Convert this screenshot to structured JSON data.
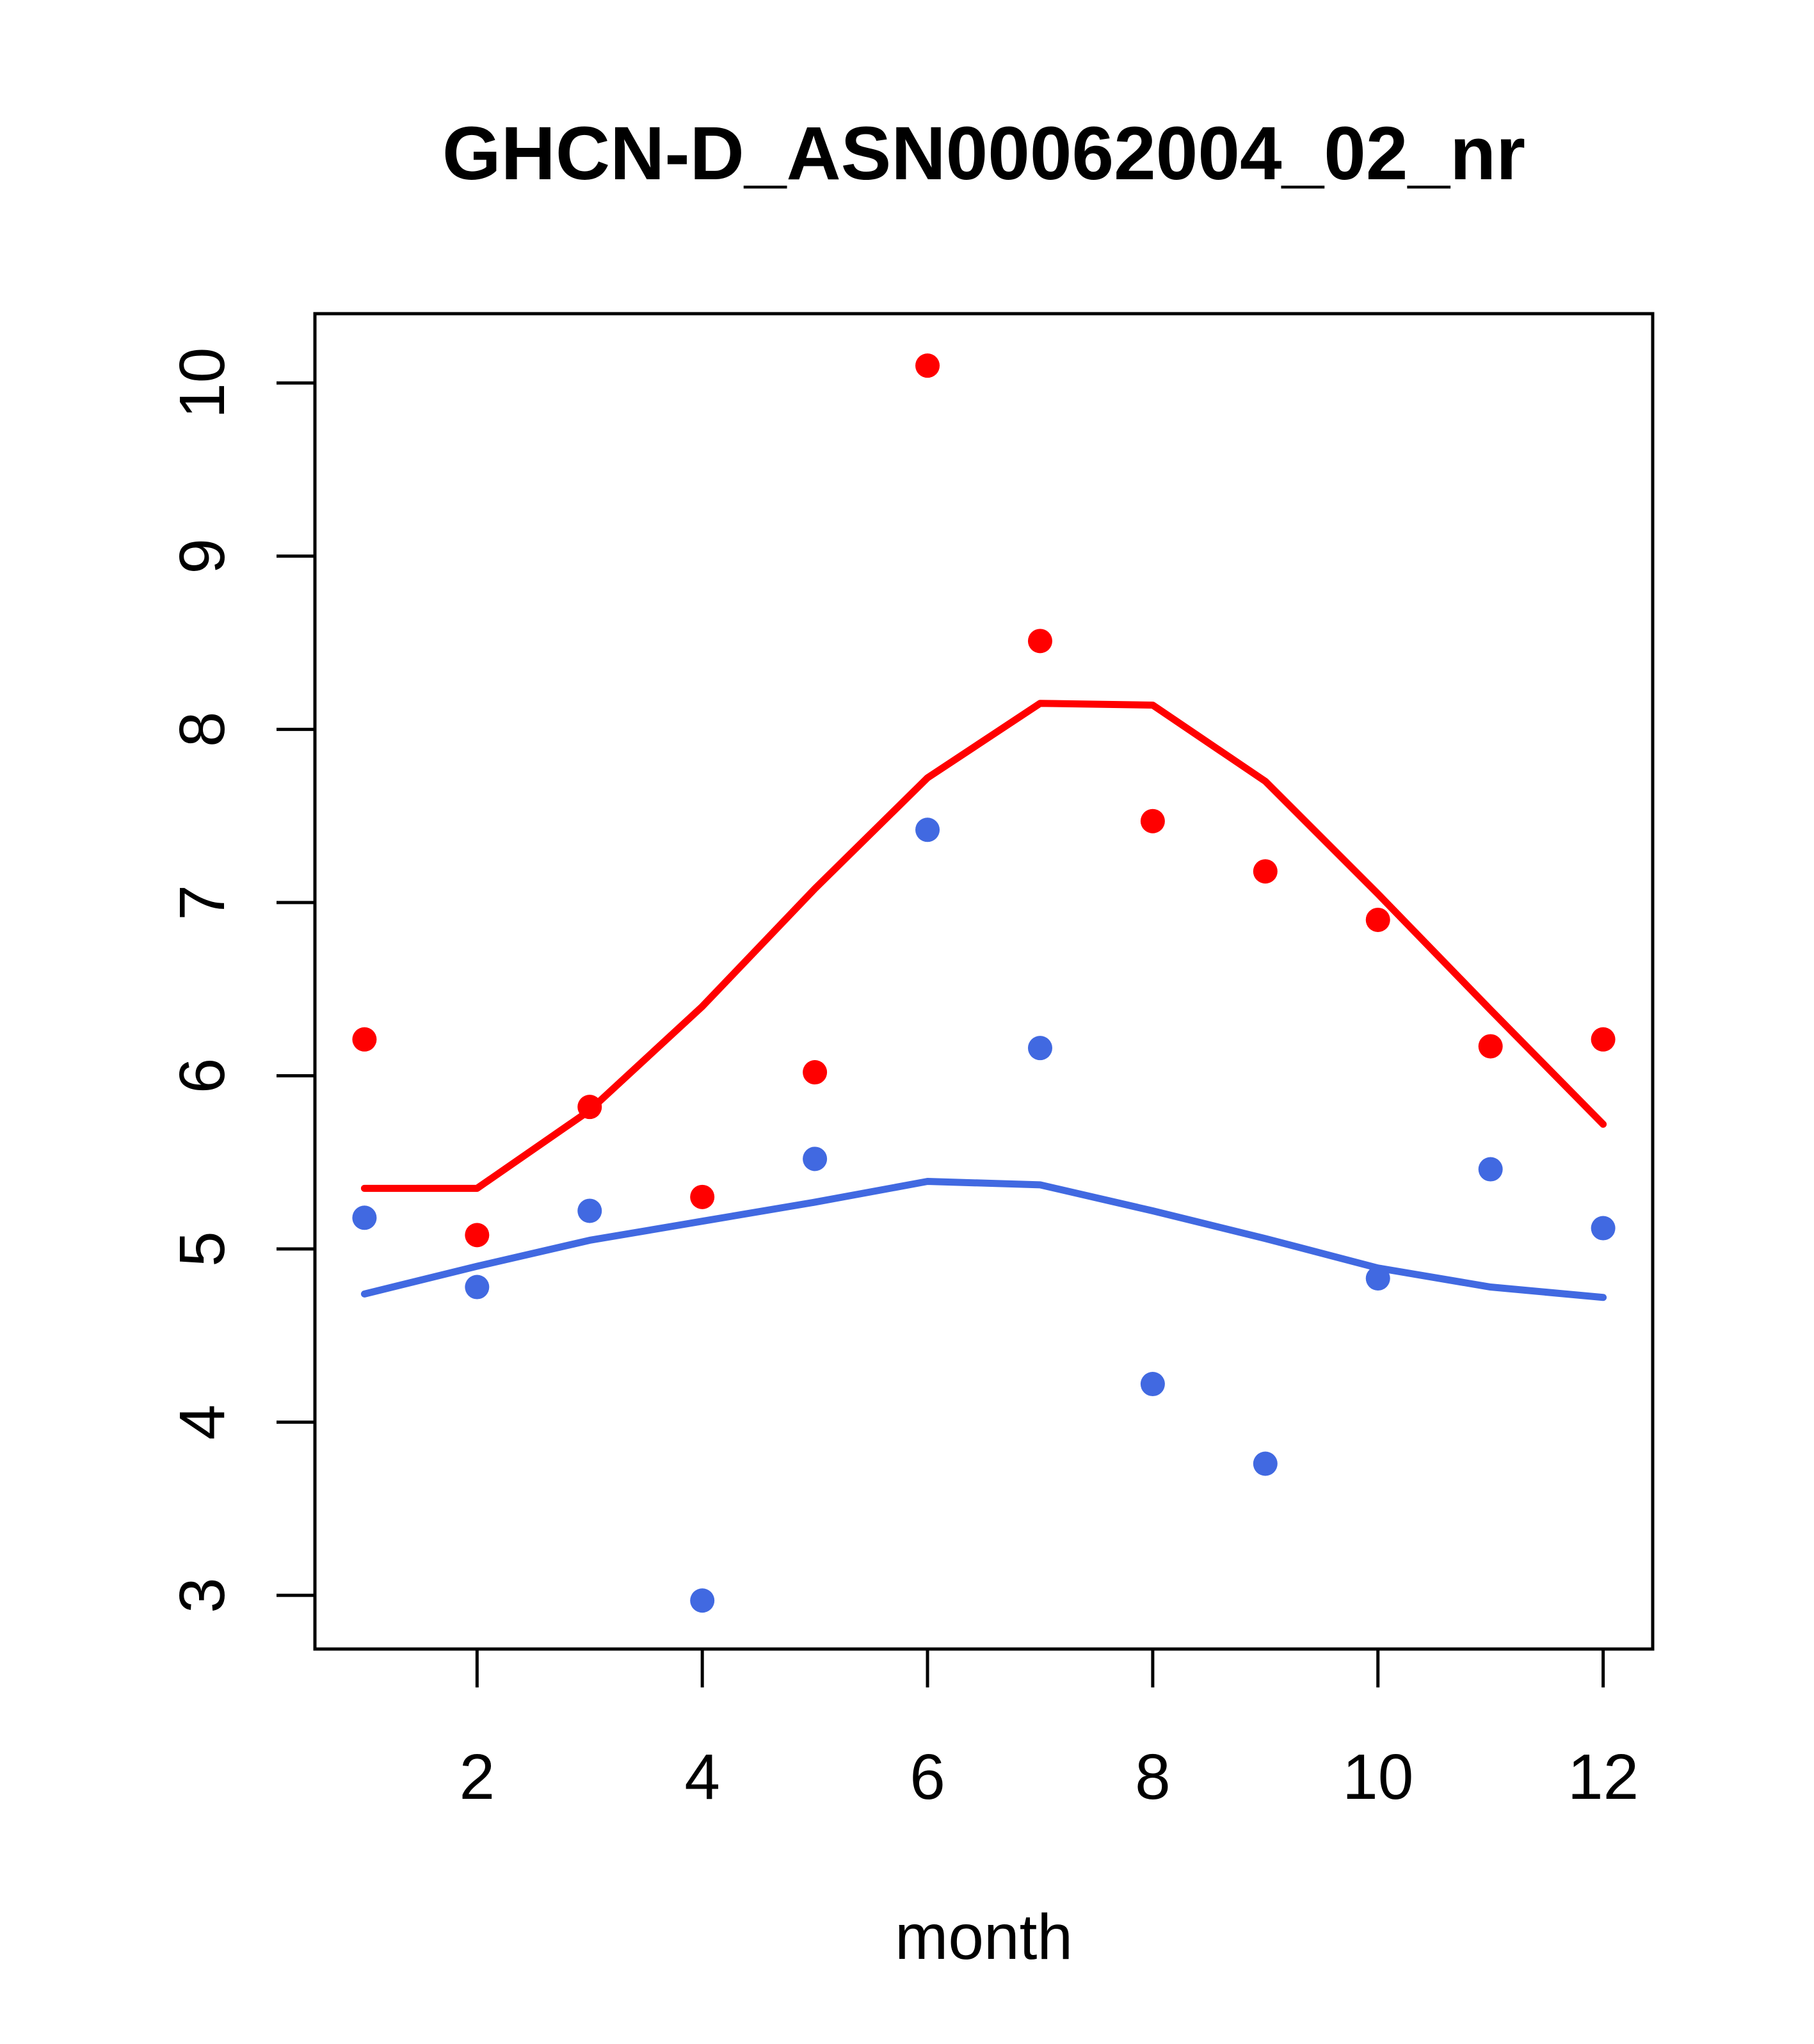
{
  "chart_data": {
    "type": "scatter",
    "title": "GHCN-D_ASN00062004_02_nr",
    "xlabel": "month",
    "ylabel": "",
    "x": [
      1,
      2,
      3,
      4,
      5,
      6,
      7,
      8,
      9,
      10,
      11,
      12
    ],
    "xticks": [
      2,
      4,
      6,
      8,
      10,
      12
    ],
    "yticks": [
      3,
      4,
      5,
      6,
      7,
      8,
      9,
      10
    ],
    "xlim": [
      0.56,
      12.44
    ],
    "ylim": [
      2.69,
      10.4
    ],
    "grid": false,
    "legend": "none",
    "series": [
      {
        "name": "red-points",
        "kind": "points",
        "color": "#FF0000",
        "values": [
          6.21,
          5.08,
          5.82,
          5.3,
          6.02,
          10.1,
          8.51,
          7.47,
          7.18,
          6.9,
          6.17,
          6.21
        ]
      },
      {
        "name": "blue-points",
        "kind": "points",
        "color": "#4169E1",
        "values": [
          5.18,
          4.78,
          5.22,
          2.97,
          5.52,
          7.42,
          6.16,
          4.22,
          3.76,
          4.83,
          5.46,
          5.12
        ]
      },
      {
        "name": "red-smooth-line",
        "kind": "line",
        "color": "#FF0000",
        "values": [
          5.35,
          5.35,
          5.8,
          6.4,
          7.08,
          7.72,
          8.15,
          8.14,
          7.7,
          7.05,
          6.38,
          5.72
        ]
      },
      {
        "name": "blue-smooth-line",
        "kind": "line",
        "color": "#4169E1",
        "values": [
          4.74,
          4.9,
          5.05,
          5.16,
          5.27,
          5.39,
          5.37,
          5.22,
          5.06,
          4.89,
          4.78,
          4.72
        ]
      }
    ],
    "colors": {
      "red": "#FF0000",
      "blue": "#4169E1",
      "axis": "#000000"
    }
  }
}
